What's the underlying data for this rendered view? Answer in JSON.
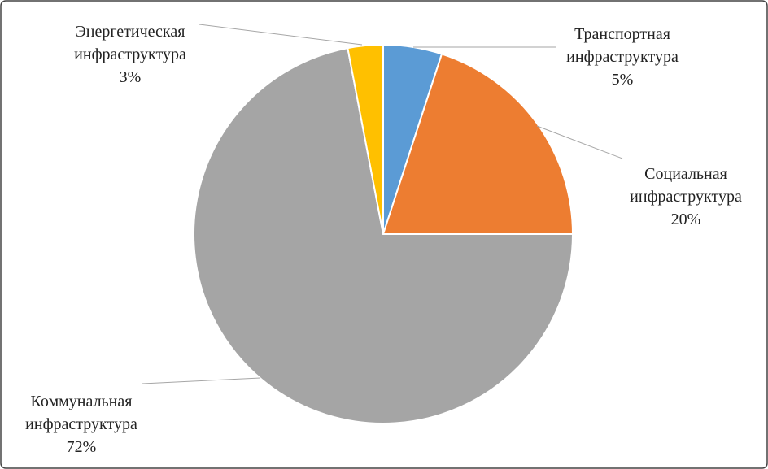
{
  "chart_data": {
    "type": "pie",
    "categories": [
      "Транспортная инфраструктура",
      "Социальная инфраструктура",
      "Коммунальная инфраструктура",
      "Энергетическая инфраструктура"
    ],
    "values": [
      5,
      20,
      72,
      3
    ],
    "value_labels": [
      "5%",
      "20%",
      "72%",
      "3%"
    ],
    "colors": [
      "#5b9bd5",
      "#ed7d31",
      "#a5a5a5",
      "#ffc000"
    ]
  }
}
